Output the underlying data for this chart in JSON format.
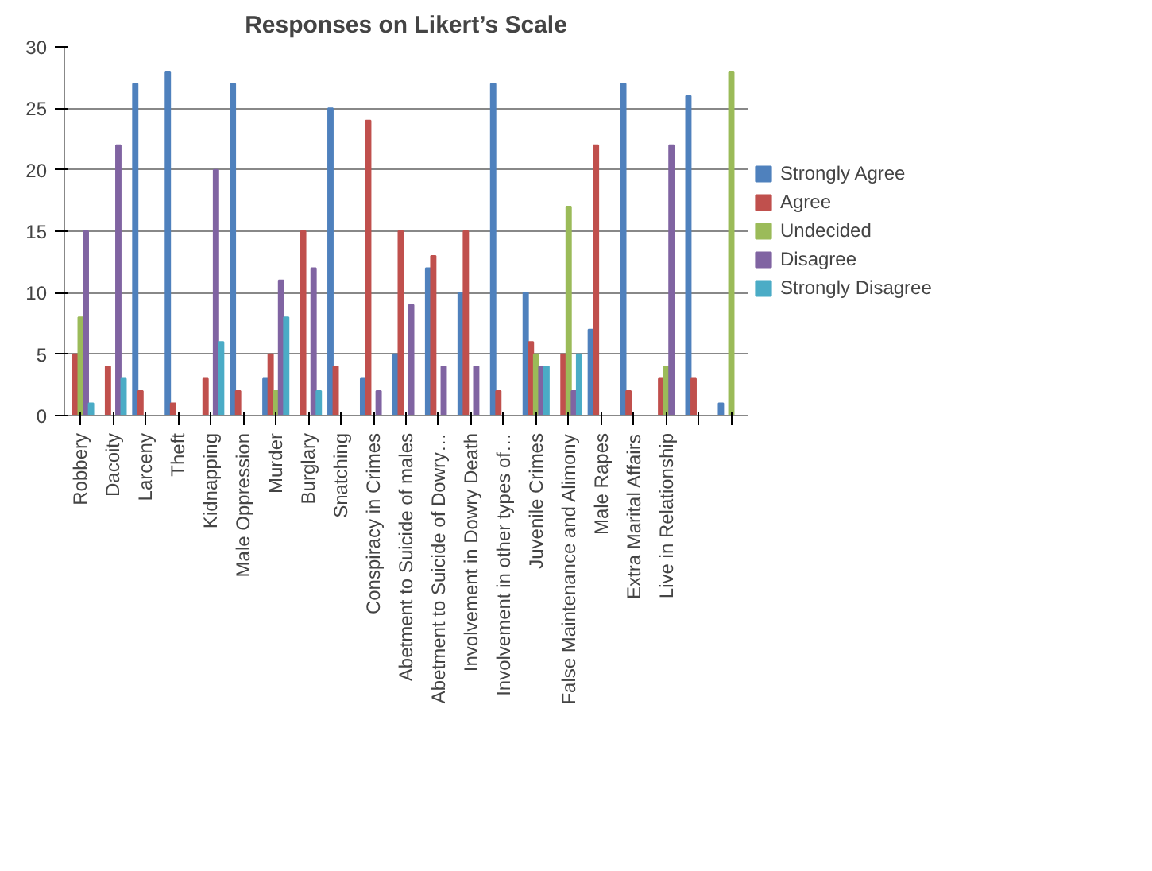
{
  "chart_data": {
    "type": "bar",
    "title": "Responses on Likert’s Scale",
    "categories": [
      "Robbery",
      "Dacoity",
      "Larceny",
      "Theft",
      "Kidnapping",
      "Male Oppression",
      "Murder",
      "Burglary",
      "Snatching",
      "Conspiracy in Crimes",
      "Abetment to Suicide of males",
      "Abetment to Suicide of Dowry…",
      "Involvement in Dowry Death",
      "Involvement in other types of…",
      "Juvenile Crimes",
      "False Maintenance and Alimony",
      "Male Rapes",
      "Extra Marital Affairs",
      "Live in Relationship",
      null,
      null
    ],
    "series": [
      {
        "name": "Strongly Agree",
        "color": "#4f81bd",
        "values": [
          0,
          0,
          27,
          28,
          0,
          27,
          3,
          0,
          25,
          3,
          5,
          12,
          10,
          27,
          10,
          0,
          7,
          27,
          0,
          26,
          1
        ]
      },
      {
        "name": "Agree",
        "color": "#c0504d",
        "values": [
          5,
          4,
          2,
          1,
          3,
          2,
          5,
          15,
          4,
          24,
          15,
          13,
          15,
          2,
          6,
          5,
          22,
          2,
          3,
          3,
          0
        ]
      },
      {
        "name": "Undecided",
        "color": "#9bbb59",
        "values": [
          8,
          0,
          0,
          0,
          0,
          0,
          2,
          0,
          0,
          0,
          0,
          0,
          0,
          0,
          5,
          17,
          0,
          0,
          4,
          0,
          28
        ]
      },
      {
        "name": "Disagree",
        "color": "#8064a2",
        "values": [
          15,
          22,
          0,
          0,
          20,
          0,
          11,
          12,
          0,
          2,
          9,
          4,
          4,
          0,
          4,
          2,
          0,
          0,
          22,
          0,
          0
        ]
      },
      {
        "name": "Strongly Disagree",
        "color": "#4bacc6",
        "values": [
          1,
          3,
          0,
          0,
          6,
          0,
          8,
          2,
          0,
          0,
          0,
          0,
          0,
          0,
          4,
          5,
          0,
          0,
          0,
          0,
          0
        ]
      }
    ],
    "ylim": [
      0,
      30
    ],
    "yticks": [
      0,
      5,
      10,
      15,
      20,
      25,
      30
    ],
    "grid": "y",
    "legend": "right"
  }
}
